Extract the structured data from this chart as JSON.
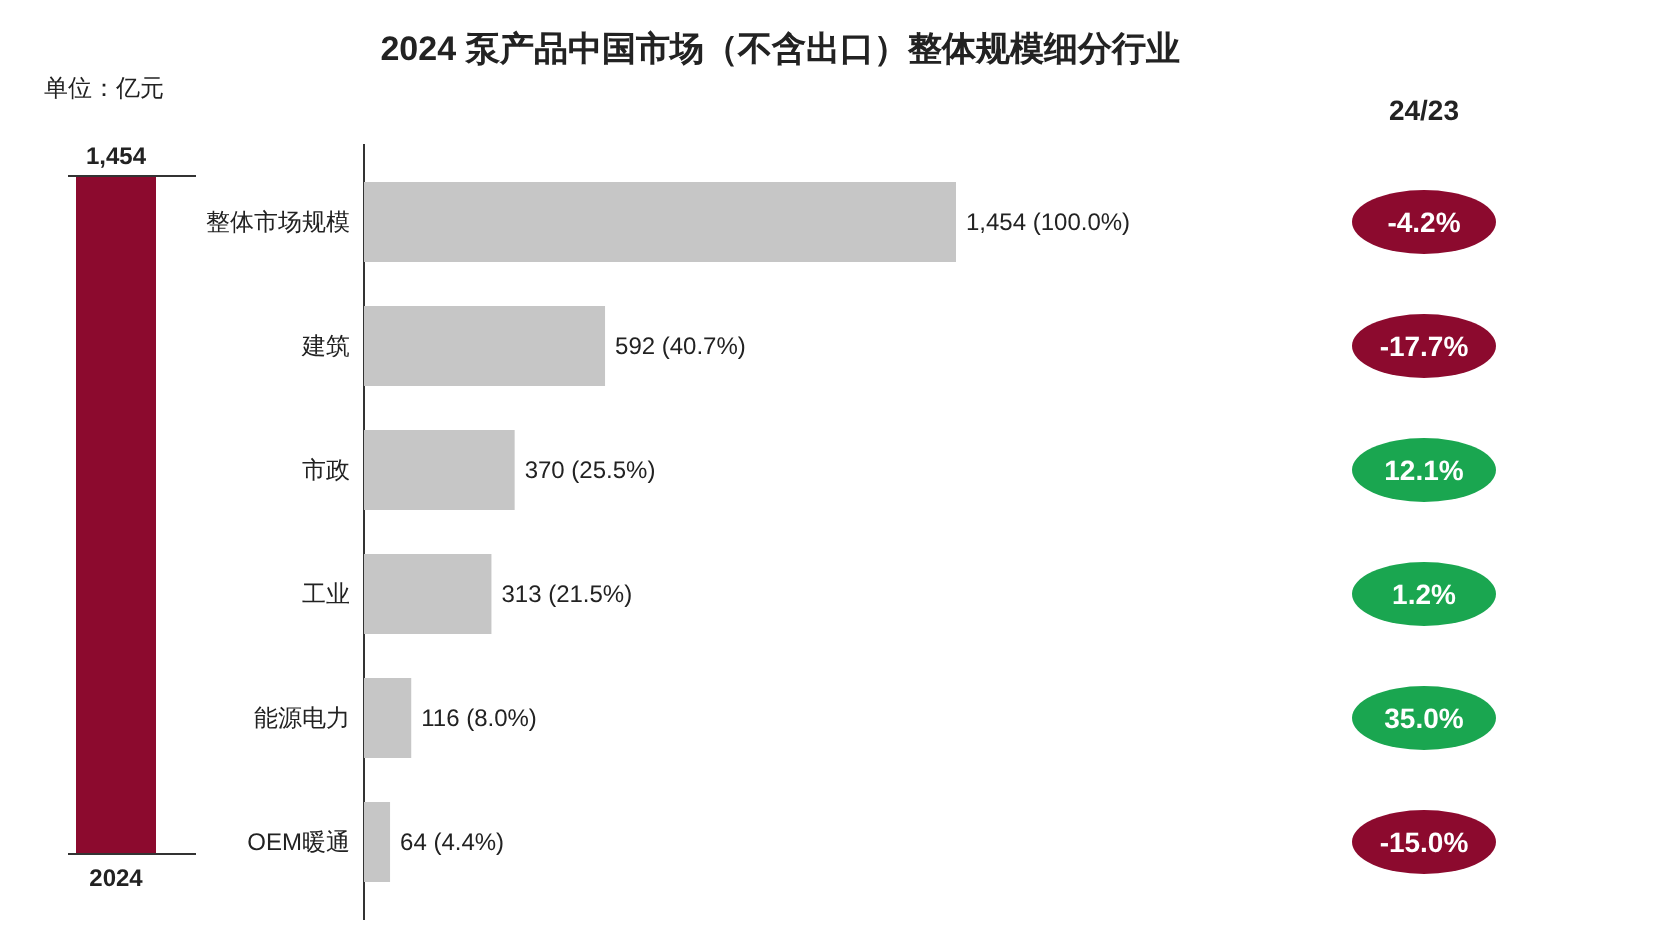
{
  "chart_data": [
    {
      "type": "bar",
      "annotations": [
        "单位：亿元"
      ],
      "categories": [
        "2024"
      ],
      "values": [
        1454
      ],
      "value_labels": [
        "1,454"
      ],
      "color": "#8c0a2e"
    },
    {
      "type": "bar",
      "orientation": "horizontal",
      "title": "2024 泵产品中国市场（不含出口）整体规模细分行业",
      "categories": [
        "整体市场规模",
        "建筑",
        "市政",
        "工业",
        "能源电力",
        "OEM暖通"
      ],
      "values": [
        1454,
        592,
        370,
        313,
        116,
        64
      ],
      "value_labels": [
        "1,454 (100.0%)",
        "592 (40.7%)",
        "370 (25.5%)",
        "313 (21.5%)",
        "116 (8.0%)",
        "64 (4.4%)"
      ],
      "color": "#c6c6c6"
    },
    {
      "type": "other",
      "title": "24/23",
      "values": [
        -4.2,
        -17.7,
        12.1,
        1.2,
        35.0,
        -15.0
      ],
      "value_labels": [
        "-4.2%",
        "-17.7%",
        "12.1%",
        "1.2%",
        "35.0%",
        "-15.0%"
      ],
      "colors": [
        "#8c0a2e",
        "#8c0a2e",
        "#1aa650",
        "#1aa650",
        "#1aa650",
        "#8c0a2e"
      ]
    }
  ]
}
